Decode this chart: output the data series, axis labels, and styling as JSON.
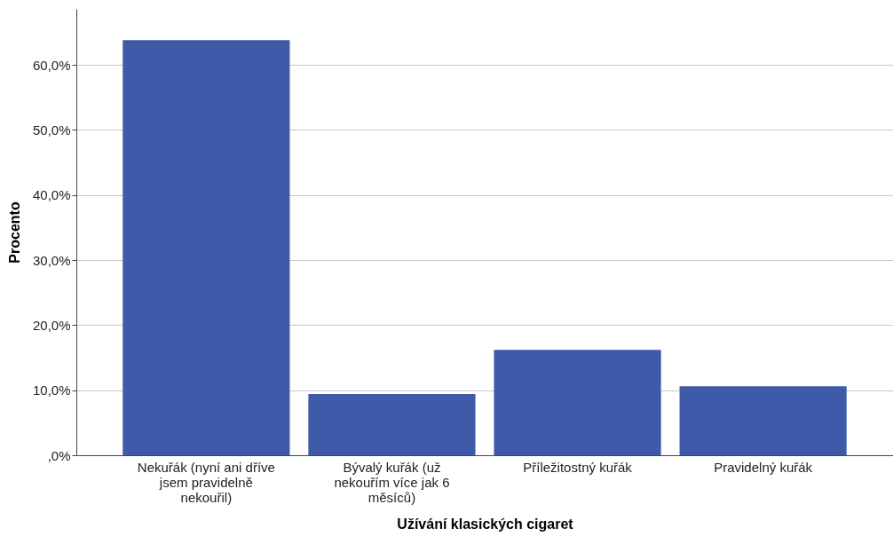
{
  "chart_data": {
    "type": "bar",
    "xlabel": "Užívání klasických cigaret",
    "ylabel": "Procento",
    "categories": [
      "Nekuřák (nyní ani dříve jsem pravidelně nekouřil)",
      "Bývalý kuřák (už nekouřím více jak 6 měsíců)",
      "Příležitostný kuřák",
      "Pravidelný kuřák"
    ],
    "values": [
      63.8,
      9.4,
      16.2,
      10.6
    ],
    "color": "#3e5aa8",
    "ylim": [
      0,
      68.6
    ],
    "yticks": [
      {
        "value": 0,
        "label": ",0%"
      },
      {
        "value": 10,
        "label": "10,0%"
      },
      {
        "value": 20,
        "label": "20,0%"
      },
      {
        "value": 30,
        "label": "30,0%"
      },
      {
        "value": 40,
        "label": "40,0%"
      },
      {
        "value": 50,
        "label": "50,0%"
      },
      {
        "value": 60,
        "label": "60,0%"
      }
    ],
    "grid": "y"
  }
}
